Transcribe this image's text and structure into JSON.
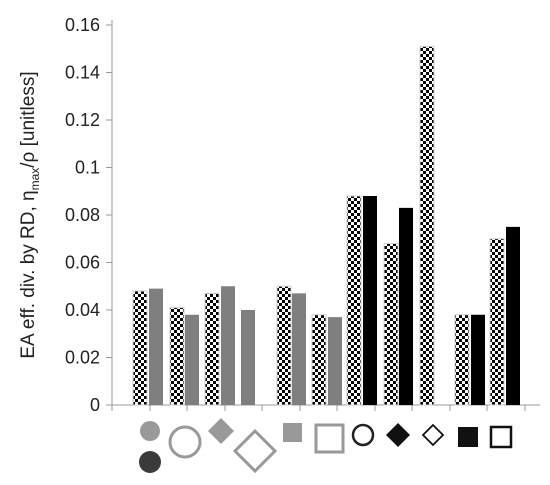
{
  "chart_data": {
    "type": "bar",
    "title": "",
    "xlabel": "",
    "ylabel": "EA eff. div. by RD,  η",
    "ylabel_sub": "max",
    "ylabel_tail": "/ρ [unitless]",
    "ylabel_bar": "ρ",
    "ylim": [
      0,
      0.16
    ],
    "yticks": [
      0,
      0.02,
      0.04,
      0.06,
      0.08,
      0.1,
      0.12,
      0.14,
      0.16
    ],
    "ytick_labels": [
      "0",
      "0.02",
      "0.04",
      "0.06",
      "0.08",
      "0.1",
      "0.12",
      "0.14",
      "0.16"
    ],
    "grid": false,
    "legend": "none",
    "categories": [
      "filled-circle",
      "open-circle",
      "filled-diamond",
      "open-diamond",
      "filled-square",
      "open-square",
      "bold-open-circle",
      "black-diamond",
      "small-open-diamond",
      "black-square",
      "bold-open-square"
    ],
    "bars": [
      {
        "value": 0.048,
        "pattern": "checker"
      },
      {
        "value": 0.049,
        "pattern": "gray"
      },
      {
        "value": 0.041,
        "pattern": "checker"
      },
      {
        "value": 0.038,
        "pattern": "gray"
      },
      {
        "value": 0.047,
        "pattern": "checker"
      },
      {
        "value": 0.05,
        "pattern": "gray"
      },
      {
        "value": 0.04,
        "pattern": "gray"
      },
      {
        "value": 0.05,
        "pattern": "checker"
      },
      {
        "value": 0.047,
        "pattern": "gray"
      },
      {
        "value": 0.038,
        "pattern": "checker"
      },
      {
        "value": 0.037,
        "pattern": "gray"
      },
      {
        "value": 0.088,
        "pattern": "checker"
      },
      {
        "value": 0.088,
        "pattern": "black"
      },
      {
        "value": 0.068,
        "pattern": "checker"
      },
      {
        "value": 0.083,
        "pattern": "black"
      },
      {
        "value": 0.151,
        "pattern": "checker"
      },
      {
        "value": 0.038,
        "pattern": "checker"
      },
      {
        "value": 0.038,
        "pattern": "black"
      },
      {
        "value": 0.07,
        "pattern": "checker"
      },
      {
        "value": 0.075,
        "pattern": "black"
      }
    ],
    "colors": {
      "gray": "#7f7f7f",
      "black": "#000000",
      "checker_dark": "#000000",
      "checker_light": "#ffffff",
      "marker_gray": "#999999",
      "marker_dark": "#3a3a3a",
      "axis": "#999999"
    }
  }
}
